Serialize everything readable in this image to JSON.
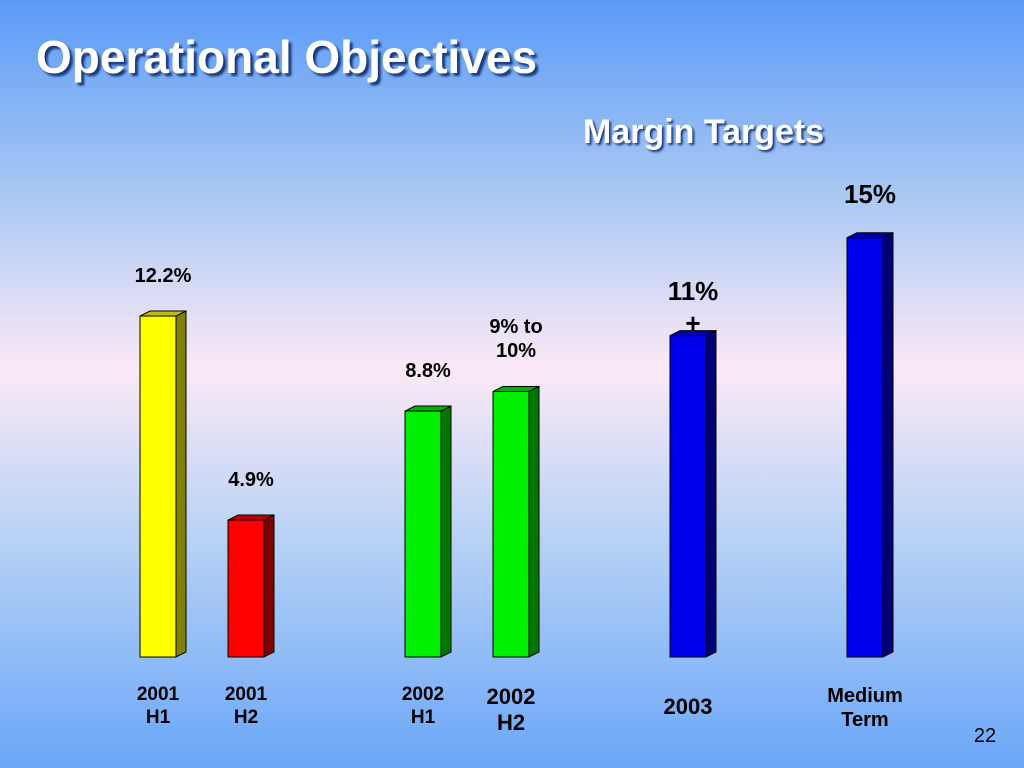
{
  "title": "Operational Objectives",
  "page_number": "22",
  "chart_data": {
    "type": "bar",
    "subtitle": "Margin Targets",
    "categories": [
      "2001 H1",
      "2001 H2",
      "2002 H1",
      "2002 H2",
      "2003",
      "Medium Term"
    ],
    "values": [
      12.2,
      4.9,
      8.8,
      9.5,
      11.5,
      15
    ],
    "value_labels": [
      "12.2%",
      "4.9%",
      "8.8%",
      "9% to 10%",
      "11% +",
      "15%"
    ],
    "colors": [
      "#ffff00",
      "#ff0000",
      "#00ee00",
      "#00ee00",
      "#0000ee",
      "#0000ee"
    ]
  }
}
